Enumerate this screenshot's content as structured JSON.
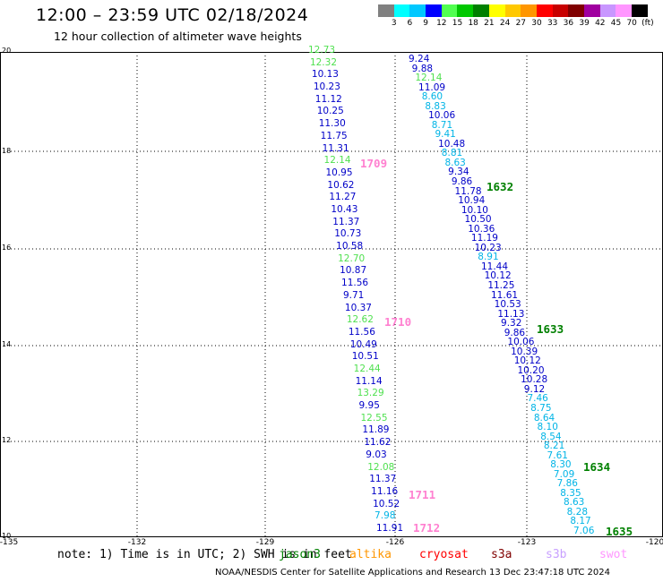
{
  "title": "12:00 – 23:59 UTC 02/18/2024",
  "subtitle": "12 hour collection of altimeter wave heights",
  "colorbar": {
    "colors": [
      "#808080",
      "#00ffff",
      "#00c8ff",
      "#0000ff",
      "#50ff50",
      "#00c800",
      "#008000",
      "#ffff00",
      "#ffc800",
      "#ff9600",
      "#ff0000",
      "#c80000",
      "#800000",
      "#a000a0",
      "#c896ff",
      "#ff96ff",
      "#000000"
    ],
    "labels": [
      "3",
      "6",
      "9",
      "12",
      "15",
      "18",
      "21",
      "24",
      "27",
      "30",
      "33",
      "36",
      "39",
      "42",
      "45",
      "70",
      "(ft)"
    ]
  },
  "axes": {
    "x_ticks": [
      "-135",
      "-132",
      "-129",
      "-126",
      "-123",
      "-120"
    ],
    "y_ticks": [
      "20",
      "18",
      "16",
      "14",
      "12",
      "10"
    ]
  },
  "tracks": [
    {
      "values": [
        "12.73",
        "12.32",
        "10.13",
        "10.23",
        "11.12",
        "10.25",
        "11.30",
        "11.75",
        "11.31",
        "12.14",
        "10.95",
        "10.62",
        "11.27",
        "10.43",
        "11.37",
        "10.73",
        "10.58",
        "12.70",
        "10.87",
        "11.56",
        "9.71",
        "10.37",
        "12.62",
        "11.56",
        "10.49",
        "10.51",
        "12.44",
        "11.14",
        "13.29",
        "9.95",
        "12.55",
        "11.89",
        "11.62",
        "9.03",
        "12.08",
        "11.37",
        "11.16",
        "10.52",
        "7.98",
        "11.91"
      ],
      "colors": [
        "#50e050",
        "#50e050",
        "#0000c8",
        "#0000c8",
        "#0000c8",
        "#0000c8",
        "#0000c8",
        "#0000c8",
        "#0000c8",
        "#50e050",
        "#0000c8",
        "#0000c8",
        "#0000c8",
        "#0000c8",
        "#0000c8",
        "#0000c8",
        "#0000c8",
        "#50e050",
        "#0000c8",
        "#0000c8",
        "#0000c8",
        "#0000c8",
        "#50e050",
        "#0000c8",
        "#0000c8",
        "#0000c8",
        "#50e050",
        "#0000c8",
        "#50e050",
        "#0000c8",
        "#50e050",
        "#0000c8",
        "#0000c8",
        "#0000c8",
        "#50e050",
        "#0000c8",
        "#0000c8",
        "#0000c8",
        "#00b4e6",
        "#0000c8"
      ]
    },
    {
      "values": [
        "9.24",
        "9.88",
        "12.14",
        "11.09",
        "8.60",
        "8.83",
        "10.06",
        "8.71",
        "9.41",
        "10.48",
        "8.81",
        "8.63",
        "9.34",
        "9.86",
        "11.78",
        "10.94",
        "10.10",
        "10.50",
        "10.36",
        "11.19",
        "10.23",
        "8.91",
        "11.44",
        "10.12",
        "11.25",
        "11.61",
        "10.53",
        "11.13",
        "9.32",
        "9.86",
        "10.06",
        "10.39",
        "10.12",
        "10.20",
        "10.28",
        "9.12",
        "7.46",
        "8.75",
        "8.64",
        "8.10",
        "8.54",
        "8.21",
        "7.61",
        "8.30",
        "7.09",
        "7.86",
        "8.35",
        "8.63",
        "8.28",
        "8.17",
        "7.06"
      ],
      "colors": [
        "#0000c8",
        "#0000c8",
        "#50e050",
        "#0000c8",
        "#00b4e6",
        "#00b4e6",
        "#0000c8",
        "#00b4e6",
        "#00b4e6",
        "#0000c8",
        "#00b4e6",
        "#00b4e6",
        "#0000c8",
        "#0000c8",
        "#0000c8",
        "#0000c8",
        "#0000c8",
        "#0000c8",
        "#0000c8",
        "#0000c8",
        "#0000c8",
        "#00b4e6",
        "#0000c8",
        "#0000c8",
        "#0000c8",
        "#0000c8",
        "#0000c8",
        "#0000c8",
        "#0000c8",
        "#0000c8",
        "#0000c8",
        "#0000c8",
        "#0000c8",
        "#0000c8",
        "#0000c8",
        "#0000c8",
        "#00b4e6",
        "#00b4e6",
        "#00b4e6",
        "#00b4e6",
        "#00b4e6",
        "#00b4e6",
        "#00b4e6",
        "#00b4e6",
        "#00b4e6",
        "#00b4e6",
        "#00b4e6",
        "#00b4e6",
        "#00b4e6",
        "#00b4e6",
        "#00b4e6"
      ]
    }
  ],
  "pass_labels": [
    {
      "text": "1709",
      "color": "#ff80d0"
    },
    {
      "text": "1710",
      "color": "#ff80d0"
    },
    {
      "text": "1711",
      "color": "#ff80d0"
    },
    {
      "text": "1712",
      "color": "#ff80d0"
    },
    {
      "text": "1632",
      "color": "#008000"
    },
    {
      "text": "1633",
      "color": "#008000"
    },
    {
      "text": "1634",
      "color": "#008000"
    },
    {
      "text": "1635",
      "color": "#008000"
    }
  ],
  "note": "note:  1) Time is in UTC; 2) SWH is in feet",
  "satellites": [
    {
      "name": "jason3",
      "color": "#008000"
    },
    {
      "name": "altika",
      "color": "#ff9600"
    },
    {
      "name": "cryosat",
      "color": "#ff0000"
    },
    {
      "name": "s3a",
      "color": "#800000"
    },
    {
      "name": "s3b",
      "color": "#c8a0ff"
    },
    {
      "name": "swot",
      "color": "#ff96ff"
    }
  ],
  "footer": "NOAA/NESDIS Center for Satellite Applications and Research    13 Dec 23:47:18 UTC 2024"
}
